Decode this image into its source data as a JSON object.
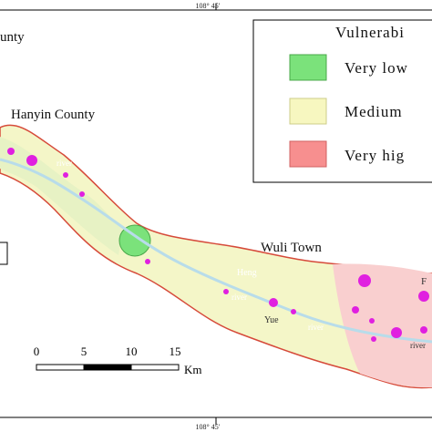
{
  "frame": {
    "top_coordinate": "108° 45′",
    "bottom_coordinate": "108° 45′"
  },
  "legend": {
    "title": "Vulnerabi",
    "items": [
      "Very low",
      "Medium",
      "Very hig"
    ]
  },
  "places": {
    "county_top": "unty",
    "hanyin": "Hanyin County",
    "wuli": "Wuli Town",
    "heng": "Heng",
    "yue": "Yue",
    "f_label": "F"
  },
  "rivers": [
    "river",
    "river",
    "river",
    "river"
  ],
  "scale_bar": {
    "ticks": [
      "0",
      "5",
      "10",
      "15"
    ],
    "unit": "Km"
  }
}
